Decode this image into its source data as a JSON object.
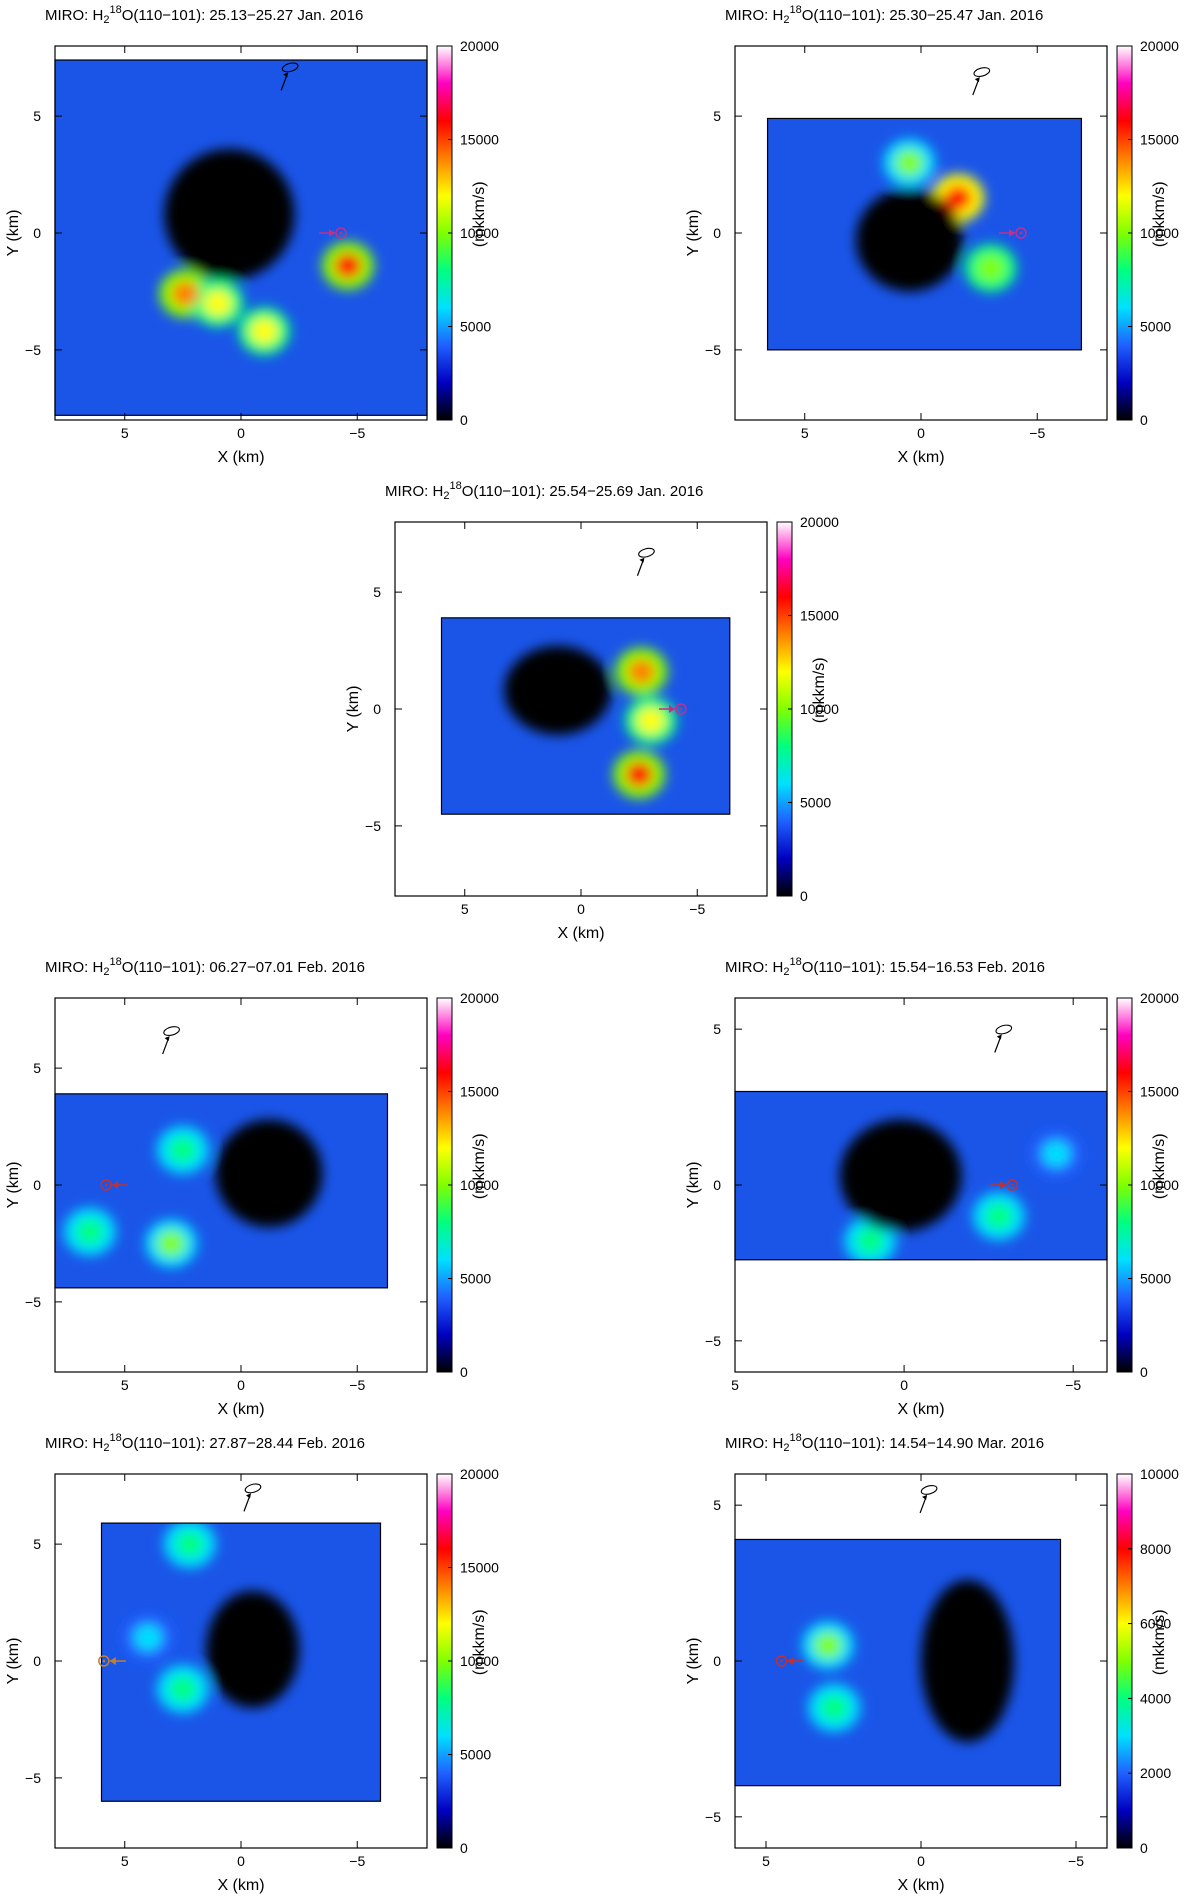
{
  "chart_data": [
    {
      "type": "heatmap",
      "title_prefix": "MIRO: H",
      "title_sub": "2",
      "title_sup": "18",
      "title_suffix": "O(110−101): 25.13−25.27 Jan. 2016",
      "xlabel": "X (km)",
      "ylabel": "Y (km)",
      "cbar_label": "(mkkm/s)",
      "xlim": [
        8,
        -8
      ],
      "ylim": [
        -8,
        8
      ],
      "x_ticks": [
        "5",
        "0",
        "−5"
      ],
      "y_ticks": [
        "5",
        "0",
        "−5"
      ],
      "cbar_range": [
        0,
        20000
      ],
      "cbar_ticks": [
        "0",
        "5000",
        "10000",
        "15000",
        "20000"
      ],
      "colormap": [
        "#000000",
        "#0000c0",
        "#2060ff",
        "#00e0ff",
        "#00ff80",
        "#80ff00",
        "#ffff00",
        "#ff8000",
        "#ff0000",
        "#ff00c0",
        "#ffffff"
      ],
      "map_extent": {
        "x": [
          8,
          -8
        ],
        "y": [
          -7.8,
          7.4
        ]
      },
      "sun_marker": {
        "x": -4.3,
        "y": 0,
        "arrow_from": "left",
        "color": "#c0308a"
      },
      "spin_axis_marker": {
        "x": -1.9,
        "y": 6.7
      },
      "hotspots": [
        {
          "x": -4.6,
          "y": -1.4,
          "value": 15500
        },
        {
          "x": 2.4,
          "y": -2.6,
          "value": 14500
        },
        {
          "x": 1.0,
          "y": -3.0,
          "value": 12000
        },
        {
          "x": -1.0,
          "y": -4.2,
          "value": 11000
        }
      ],
      "nucleus": {
        "x": 0.5,
        "y": 0.8,
        "rx": 2.8,
        "ry": 2.8
      }
    },
    {
      "type": "heatmap",
      "title_prefix": "MIRO: H",
      "title_sub": "2",
      "title_sup": "18",
      "title_suffix": "O(110−101): 25.30−25.47 Jan. 2016",
      "xlabel": "X (km)",
      "ylabel": "Y (km)",
      "cbar_label": "(mkkm/s)",
      "xlim": [
        8,
        -8
      ],
      "ylim": [
        -8,
        8
      ],
      "x_ticks": [
        "5",
        "0",
        "−5"
      ],
      "y_ticks": [
        "5",
        "0",
        "−5"
      ],
      "cbar_range": [
        0,
        20000
      ],
      "cbar_ticks": [
        "0",
        "5000",
        "10000",
        "15000",
        "20000"
      ],
      "map_extent": {
        "x": [
          6.6,
          -6.9
        ],
        "y": [
          -5.0,
          4.9
        ]
      },
      "sun_marker": {
        "x": -4.3,
        "y": 0,
        "arrow_from": "left",
        "color": "#c0308a"
      },
      "spin_axis_marker": {
        "x": -2.4,
        "y": 6.5
      },
      "hotspots": [
        {
          "x": -1.6,
          "y": 1.5,
          "value": 16500
        },
        {
          "x": -3.0,
          "y": -1.5,
          "value": 10500
        },
        {
          "x": 0.5,
          "y": 3.0,
          "value": 9500
        }
      ],
      "nucleus": {
        "x": 0.5,
        "y": -0.3,
        "rx": 2.3,
        "ry": 2.2
      }
    },
    {
      "type": "heatmap",
      "title_prefix": "MIRO: H",
      "title_sub": "2",
      "title_sup": "18",
      "title_suffix": "O(110−101): 25.54−25.69 Jan. 2016",
      "xlabel": "X (km)",
      "ylabel": "Y (km)",
      "cbar_label": "(mkkm/s)",
      "xlim": [
        8,
        -8
      ],
      "ylim": [
        -8,
        8
      ],
      "x_ticks": [
        "5",
        "0",
        "−5"
      ],
      "y_ticks": [
        "5",
        "0",
        "−5"
      ],
      "cbar_range": [
        0,
        20000
      ],
      "cbar_ticks": [
        "0",
        "5000",
        "10000",
        "15000",
        "20000"
      ],
      "map_extent": {
        "x": [
          6.0,
          -6.4
        ],
        "y": [
          -4.5,
          3.9
        ]
      },
      "sun_marker": {
        "x": -4.3,
        "y": 0,
        "arrow_from": "left",
        "color": "#c0308a"
      },
      "spin_axis_marker": {
        "x": -2.6,
        "y": 6.3
      },
      "hotspots": [
        {
          "x": -2.5,
          "y": -2.8,
          "value": 15000
        },
        {
          "x": -2.6,
          "y": 1.6,
          "value": 14000
        },
        {
          "x": -3.0,
          "y": -0.5,
          "value": 11000
        }
      ],
      "nucleus": {
        "x": 1.0,
        "y": 0.8,
        "rx": 2.3,
        "ry": 1.9
      }
    },
    {
      "type": "heatmap",
      "title_prefix": "MIRO: H",
      "title_sub": "2",
      "title_sup": "18",
      "title_suffix": "O(110−101): 06.27−07.01 Feb. 2016",
      "xlabel": "X (km)",
      "ylabel": "Y (km)",
      "cbar_label": "(mkkm/s)",
      "xlim": [
        8,
        -8
      ],
      "ylim": [
        -8,
        8
      ],
      "x_ticks": [
        "5",
        "0",
        "−5"
      ],
      "y_ticks": [
        "5",
        "0",
        "−5"
      ],
      "cbar_range": [
        0,
        20000
      ],
      "cbar_ticks": [
        "0",
        "5000",
        "10000",
        "15000",
        "20000"
      ],
      "map_extent": {
        "x": [
          8,
          -6.3
        ],
        "y": [
          -4.4,
          3.9
        ]
      },
      "sun_marker": {
        "x": 5.8,
        "y": 0,
        "arrow_from": "right",
        "color": "#c03030"
      },
      "spin_axis_marker": {
        "x": 3.2,
        "y": 6.2
      },
      "hotspots": [
        {
          "x": 3.0,
          "y": -2.5,
          "value": 9000
        },
        {
          "x": 6.5,
          "y": -2.0,
          "value": 8000
        },
        {
          "x": 2.5,
          "y": 1.5,
          "value": 7500
        }
      ],
      "nucleus": {
        "x": -1.2,
        "y": 0.5,
        "rx": 2.3,
        "ry": 2.3
      }
    },
    {
      "type": "heatmap",
      "title_prefix": "MIRO: H",
      "title_sub": "2",
      "title_sup": "18",
      "title_suffix": "O(110−101): 15.54−16.53 Feb. 2016",
      "xlabel": "X (km)",
      "ylabel": "Y (km)",
      "cbar_label": "(mkkm/s)",
      "xlim": [
        5,
        -6
      ],
      "ylim": [
        -6,
        6
      ],
      "x_ticks": [
        "5",
        "0",
        "−5"
      ],
      "y_ticks": [
        "5",
        "0",
        "−5"
      ],
      "cbar_range": [
        0,
        20000
      ],
      "cbar_ticks": [
        "0",
        "5000",
        "10000",
        "15000",
        "20000"
      ],
      "map_extent": {
        "x": [
          5,
          -6
        ],
        "y": [
          -2.4,
          3.0
        ]
      },
      "sun_marker": {
        "x": -3.2,
        "y": 0,
        "arrow_from": "left",
        "color": "#c03030"
      },
      "spin_axis_marker": {
        "x": -2.8,
        "y": 4.7
      },
      "hotspots": [
        {
          "x": -2.8,
          "y": -1.0,
          "value": 8500
        },
        {
          "x": 1.0,
          "y": -1.8,
          "value": 8000
        },
        {
          "x": -4.5,
          "y": 1.0,
          "value": 6500
        }
      ],
      "nucleus": {
        "x": 0.1,
        "y": 0.3,
        "rx": 1.8,
        "ry": 1.8
      }
    },
    {
      "type": "heatmap",
      "title_prefix": "MIRO: H",
      "title_sub": "2",
      "title_sup": "18",
      "title_suffix": "O(110−101): 27.87−28.44 Feb. 2016",
      "xlabel": "X (km)",
      "ylabel": "Y (km)",
      "cbar_label": "(mkkm/s)",
      "xlim": [
        8,
        -8
      ],
      "ylim": [
        -8,
        8
      ],
      "x_ticks": [
        "5",
        "0",
        "−5"
      ],
      "y_ticks": [
        "5",
        "0",
        "−5"
      ],
      "cbar_range": [
        0,
        20000
      ],
      "cbar_ticks": [
        "0",
        "5000",
        "10000",
        "15000",
        "20000"
      ],
      "map_extent": {
        "x": [
          6.0,
          -6.0
        ],
        "y": [
          -6.0,
          5.9
        ]
      },
      "sun_marker": {
        "x": 5.9,
        "y": 0,
        "arrow_from": "right",
        "color": "#c08030"
      },
      "spin_axis_marker": {
        "x": -0.3,
        "y": 7.0
      },
      "hotspots": [
        {
          "x": 2.5,
          "y": -1.2,
          "value": 8500
        },
        {
          "x": 2.2,
          "y": 5.0,
          "value": 8000
        },
        {
          "x": 4.0,
          "y": 1.0,
          "value": 6500
        }
      ],
      "nucleus": {
        "x": -0.5,
        "y": 0.5,
        "rx": 2.0,
        "ry": 2.5
      }
    },
    {
      "type": "heatmap",
      "title_prefix": "MIRO: H",
      "title_sub": "2",
      "title_sup": "18",
      "title_suffix": "O(110−101): 14.54−14.90 Mar. 2016",
      "xlabel": "X (km)",
      "ylabel": "Y (km)",
      "cbar_label": "(mkkm/s)",
      "xlim": [
        6,
        -6
      ],
      "ylim": [
        -6,
        6
      ],
      "x_ticks": [
        "5",
        "0",
        "−5"
      ],
      "y_ticks": [
        "5",
        "0",
        "−5"
      ],
      "cbar_range": [
        0,
        10000
      ],
      "cbar_ticks": [
        "0",
        "2000",
        "4000",
        "6000",
        "8000",
        "10000"
      ],
      "map_extent": {
        "x": [
          6.0,
          -4.5
        ],
        "y": [
          -4.0,
          3.9
        ]
      },
      "sun_marker": {
        "x": 4.5,
        "y": 0,
        "arrow_from": "right",
        "color": "#c03030"
      },
      "spin_axis_marker": {
        "x": -0.1,
        "y": 5.2
      },
      "hotspots": [
        {
          "x": 3.0,
          "y": 0.5,
          "value": 4800
        },
        {
          "x": 2.8,
          "y": -1.5,
          "value": 4200
        }
      ],
      "nucleus": {
        "x": -1.5,
        "y": 0.0,
        "rx": 1.5,
        "ry": 2.6
      }
    }
  ]
}
